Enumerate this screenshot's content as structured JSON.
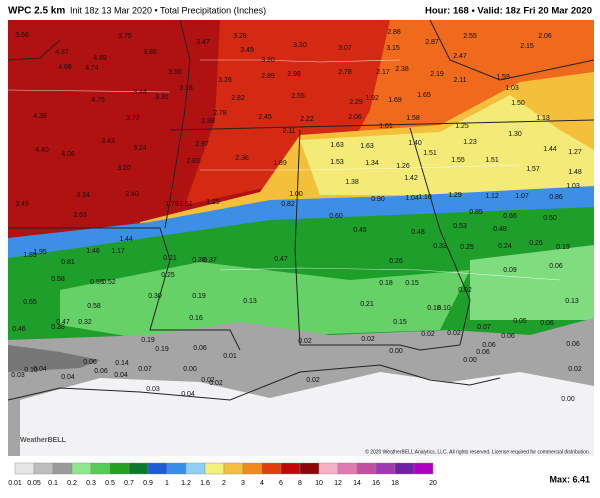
{
  "header": {
    "model": "WPC 2.5 km",
    "init": "Init 18z 13 Mar 2020 • Total Precipitation (Inches)",
    "hour": "Hour: 168 • Valid: 18z Fri 20 Mar 2020"
  },
  "map_values": [
    "3.66",
    "3.75",
    "4.37",
    "4.89",
    "4.68",
    "4.74",
    "3.86",
    "3.47",
    "3.28",
    "3.49",
    "3.30",
    "3.20",
    "3.55",
    "3.26",
    "2.89",
    "2.98",
    "3.07",
    "3.15",
    "2.88",
    "2.87",
    "2.47",
    "2.55",
    "2.06",
    "2.15",
    "2.78",
    "2.17",
    "2.38",
    "2.19",
    "2.11",
    "1.59",
    "1.03",
    "3.18",
    "3.44",
    "4.76",
    "3.31",
    "2.82",
    "2.55",
    "2.29",
    "1.92",
    "1.69",
    "1.65",
    "4.38",
    "3.72",
    "2.78",
    "2.88",
    "2.45",
    "2.22",
    "2.06",
    "1.61",
    "1.58",
    "1.25",
    "1.50",
    "1.13",
    "1.30",
    "2.11",
    "3.43",
    "3.24",
    "2.97",
    "4.40",
    "4.06",
    "2.36",
    "2.83",
    "1.89",
    "1.63",
    "1.63",
    "1.40",
    "1.51",
    "1.23",
    "1.44",
    "1.27",
    "1.53",
    "1.34",
    "1.26",
    "1.55",
    "1.51",
    "1.57",
    "1.48",
    "3.20",
    "1.38",
    "1.42",
    "1.03",
    "3.34",
    "2.40",
    "1.00",
    "1.29",
    "1.12",
    "1.07",
    "0.86",
    "3.49",
    "1.79",
    "1.61",
    "1.25",
    "0.82",
    "0.90",
    "1.04",
    "1.10",
    "2.63",
    "0.60",
    "0.85",
    "0.66",
    "0.50",
    "0.45",
    "0.48",
    "0.53",
    "0.48",
    "1.95",
    "1.89",
    "1.44",
    "1.46",
    "1.17",
    "0.33",
    "0.25",
    "0.24",
    "0.26",
    "0.19",
    "0.21",
    "0.37",
    "0.38",
    "0.47",
    "0.26",
    "0.09",
    "0.81",
    "0.58",
    "0.55",
    "0.52",
    "0.65",
    "0.18",
    "0.15",
    "0.06",
    "0.25",
    "0.30",
    "0.19",
    "0.02",
    "0.10",
    "0.18",
    "0.58",
    "0.21",
    "0.13",
    "0.13",
    "0.47",
    "0.38",
    "0.32",
    "0.16",
    "0.05",
    "0.06",
    "0.46",
    "0.15",
    "0.07",
    "0.02",
    "0.02",
    "0.06",
    "0.19",
    "0.06",
    "0.19",
    "0.02",
    "0.02",
    "0.06",
    "0.06",
    "0.06",
    "0.01",
    "0.06",
    "0.14",
    "0.04",
    "0.03",
    "0.10",
    "0.06",
    "0.04",
    "0.04",
    "0.02",
    "0.02",
    "0.03",
    "0.04",
    "0.02",
    "0.02",
    "0.00",
    "0.00",
    "0.00",
    "0.00",
    "0.07"
  ],
  "logo": "WeatherBELL",
  "copyright": "© 2020 WeatherBELL Analytics, LLC. All rights reserved. License required for commercial distribution.",
  "legend": [
    "0.01",
    "0.05",
    "0.1",
    "0.2",
    "0.3",
    "0.5",
    "0.7",
    "0.9",
    "1",
    "1.2",
    "1.6",
    "2",
    "3",
    "4",
    "6",
    "8",
    "10",
    "12",
    "14",
    "16",
    "18",
    "20"
  ],
  "max": "Max: 6.41"
}
